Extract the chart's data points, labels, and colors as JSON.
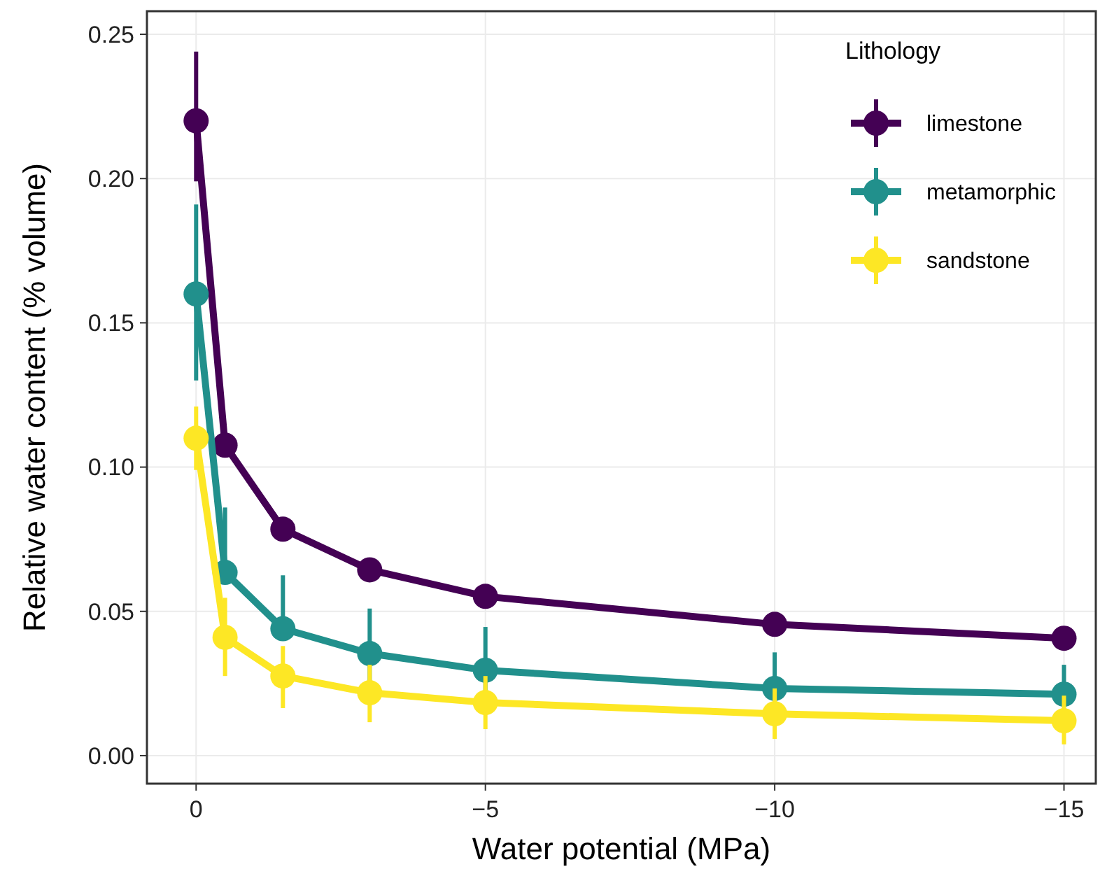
{
  "chart_data": {
    "type": "line",
    "xlabel": "Water potential (MPa)",
    "ylabel": "Relative water content (% volume)",
    "legend_title": "Lithology",
    "legend": "top right",
    "grid": true,
    "marker": "circle",
    "line_style": "solid",
    "x": [
      0,
      -0.5,
      -1.5,
      -3,
      -5,
      -10,
      -15
    ],
    "xlim": [
      0.85,
      -15.55
    ],
    "xticks": [
      0,
      {
        "value": -5,
        "label": "−5"
      },
      {
        "value": -10,
        "label": "−10"
      },
      {
        "value": -15,
        "label": "−15"
      }
    ],
    "ylim": [
      -0.0097,
      0.258
    ],
    "yticks": [
      {
        "value": 0,
        "label": "0.00"
      },
      {
        "value": 0.05,
        "label": "0.05"
      },
      {
        "value": 0.1,
        "label": "0.10"
      },
      {
        "value": 0.15,
        "label": "0.15"
      },
      {
        "value": 0.2,
        "label": "0.20"
      },
      {
        "value": 0.25,
        "label": "0.25"
      }
    ],
    "series": [
      {
        "name": "limestone",
        "color": "#440154",
        "values": [
          0.22,
          0.1076,
          0.0785,
          0.0644,
          0.0552,
          0.0455,
          0.0407
        ],
        "errors": [
          [
            0.199,
            0.244
          ],
          null,
          null,
          null,
          null,
          null,
          null
        ]
      },
      {
        "name": "metamorphic",
        "color": "#21908c",
        "values": [
          0.16,
          0.0635,
          0.044,
          0.0354,
          0.0296,
          0.0233,
          0.0213
        ],
        "errors": [
          [
            0.13,
            0.191
          ],
          [
            0.0635,
            0.086
          ],
          [
            0.044,
            0.0625
          ],
          [
            0.019,
            0.051
          ],
          [
            0.0145,
            0.0446
          ],
          [
            0.011,
            0.0358
          ],
          [
            0.0213,
            0.0315
          ]
        ]
      },
      {
        "name": "sandstone",
        "color": "#fde725",
        "values": [
          0.11,
          0.041,
          0.0276,
          0.0218,
          0.0184,
          0.0145,
          0.0121
        ],
        "errors": [
          [
            0.099,
            0.121
          ],
          [
            0.0276,
            0.0547
          ],
          [
            0.0165,
            0.038
          ],
          [
            0.0116,
            0.0315
          ],
          [
            0.0092,
            0.0276
          ],
          [
            0.0058,
            0.0233
          ],
          [
            0.0039,
            0.0208
          ]
        ]
      }
    ]
  }
}
